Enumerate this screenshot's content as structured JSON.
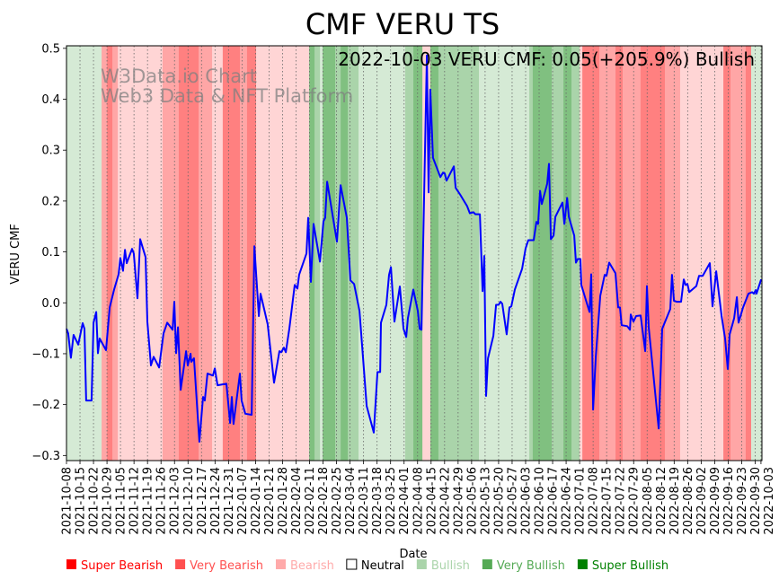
{
  "chart_data": {
    "type": "line",
    "title": "CMF VERU TS",
    "annotation": "2022-10-03 VERU CMF: 0.05(+205.9%) Bullish",
    "watermark": [
      "W3Data.io Chart",
      "Web3 Data & NFT Platform"
    ],
    "xlabel": "Date",
    "ylabel": "VERU CMF",
    "x_start_date": "2021-10-08",
    "x_unit": "days since 2021-10-08",
    "xlim": [
      0,
      360.5
    ],
    "ylim": [
      -0.31,
      0.505
    ],
    "grid": "vertical dotted at x ticks",
    "yticks": [
      -0.3,
      -0.2,
      -0.1,
      0.0,
      0.1,
      0.2,
      0.3,
      0.4,
      0.5
    ],
    "ytick_labels": [
      "−0.3",
      "−0.2",
      "−0.1",
      "0.0",
      "0.1",
      "0.2",
      "0.3",
      "0.4",
      "0.5"
    ],
    "xtick_labels": [
      "2021-10-08",
      "2021-10-15",
      "2021-10-22",
      "2021-10-29",
      "2021-11-05",
      "2021-11-12",
      "2021-11-19",
      "2021-11-26",
      "2021-12-03",
      "2021-12-10",
      "2021-12-17",
      "2021-12-24",
      "2021-12-31",
      "2022-01-07",
      "2022-01-14",
      "2022-01-21",
      "2022-01-28",
      "2022-02-04",
      "2022-02-11",
      "2022-02-18",
      "2022-02-25",
      "2022-03-04",
      "2022-03-11",
      "2022-03-18",
      "2022-03-25",
      "2022-04-01",
      "2022-04-08",
      "2022-04-15",
      "2022-04-22",
      "2022-04-29",
      "2022-05-06",
      "2022-05-13",
      "2022-05-20",
      "2022-05-27",
      "2022-06-03",
      "2022-06-10",
      "2022-06-17",
      "2022-06-24",
      "2022-07-01",
      "2022-07-08",
      "2022-07-15",
      "2022-07-22",
      "2022-07-29",
      "2022-08-05",
      "2022-08-12",
      "2022-08-19",
      "2022-08-26",
      "2022-09-02",
      "2022-09-09",
      "2022-09-16",
      "2022-09-23",
      "2022-09-30",
      "2022-10-03"
    ],
    "series": [
      {
        "name": "VERU CMF",
        "color": "#0000ff",
        "points": [
          [
            0,
            -0.051
          ],
          [
            0.9,
            -0.06
          ],
          [
            2.3,
            -0.108
          ],
          [
            3.7,
            -0.063
          ],
          [
            6.1,
            -0.082
          ],
          [
            8.4,
            -0.04
          ],
          [
            9.3,
            -0.051
          ],
          [
            10.2,
            -0.192
          ],
          [
            13.0,
            -0.192
          ],
          [
            14.0,
            -0.039
          ],
          [
            15.4,
            -0.018
          ],
          [
            16.3,
            -0.099
          ],
          [
            17.2,
            -0.07
          ],
          [
            20.5,
            -0.093
          ],
          [
            22.4,
            -0.009
          ],
          [
            24.7,
            0.026
          ],
          [
            27.0,
            0.056
          ],
          [
            27.9,
            0.088
          ],
          [
            29.3,
            0.063
          ],
          [
            30.3,
            0.104
          ],
          [
            31.2,
            0.078
          ],
          [
            34.0,
            0.106
          ],
          [
            34.9,
            0.097
          ],
          [
            36.8,
            0.009
          ],
          [
            38.2,
            0.125
          ],
          [
            41.0,
            0.09
          ],
          [
            41.9,
            -0.037
          ],
          [
            43.8,
            -0.123
          ],
          [
            45.2,
            -0.106
          ],
          [
            48.0,
            -0.127
          ],
          [
            50.3,
            -0.06
          ],
          [
            52.2,
            -0.039
          ],
          [
            55.0,
            -0.053
          ],
          [
            55.9,
            0.002
          ],
          [
            56.8,
            -0.099
          ],
          [
            57.8,
            -0.048
          ],
          [
            59.2,
            -0.171
          ],
          [
            62.0,
            -0.095
          ],
          [
            62.9,
            -0.123
          ],
          [
            64.3,
            -0.1
          ],
          [
            64.7,
            -0.116
          ],
          [
            66.1,
            -0.109
          ],
          [
            68.9,
            -0.273
          ],
          [
            70.8,
            -0.185
          ],
          [
            71.7,
            -0.192
          ],
          [
            73.1,
            -0.139
          ],
          [
            75.9,
            -0.143
          ],
          [
            76.9,
            -0.129
          ],
          [
            78.3,
            -0.162
          ],
          [
            82.9,
            -0.159
          ],
          [
            84.8,
            -0.236
          ],
          [
            85.7,
            -0.185
          ],
          [
            86.6,
            -0.238
          ],
          [
            89.9,
            -0.139
          ],
          [
            90.8,
            -0.192
          ],
          [
            92.7,
            -0.218
          ],
          [
            96.0,
            -0.22
          ],
          [
            97.4,
            0.111
          ],
          [
            99.7,
            -0.026
          ],
          [
            100.6,
            0.018
          ],
          [
            104.3,
            -0.042
          ],
          [
            107.6,
            -0.157
          ],
          [
            110.4,
            -0.095
          ],
          [
            111.3,
            -0.097
          ],
          [
            112.7,
            -0.088
          ],
          [
            113.7,
            -0.097
          ],
          [
            115.5,
            -0.051
          ],
          [
            118.3,
            0.035
          ],
          [
            119.7,
            0.028
          ],
          [
            120.6,
            0.055
          ],
          [
            124.4,
            0.097
          ],
          [
            125.3,
            0.167
          ],
          [
            126.7,
            0.041
          ],
          [
            128.1,
            0.155
          ],
          [
            131.4,
            0.081
          ],
          [
            133.2,
            0.16
          ],
          [
            134.1,
            0.167
          ],
          [
            135.1,
            0.238
          ],
          [
            140.2,
            0.12
          ],
          [
            142.1,
            0.231
          ],
          [
            145.3,
            0.167
          ],
          [
            147.2,
            0.044
          ],
          [
            149.1,
            0.037
          ],
          [
            151.9,
            -0.016
          ],
          [
            155.6,
            -0.203
          ],
          [
            159.3,
            -0.255
          ],
          [
            161.2,
            -0.136
          ],
          [
            162.6,
            -0.136
          ],
          [
            163.0,
            -0.039
          ],
          [
            165.8,
            -0.004
          ],
          [
            167.2,
            0.055
          ],
          [
            168.2,
            0.07
          ],
          [
            170.0,
            -0.037
          ],
          [
            172.8,
            0.032
          ],
          [
            174.7,
            -0.051
          ],
          [
            176.1,
            -0.067
          ],
          [
            177.0,
            -0.03
          ],
          [
            179.8,
            0.026
          ],
          [
            182.1,
            -0.016
          ],
          [
            183.1,
            -0.051
          ],
          [
            184.0,
            -0.053
          ],
          [
            186.8,
            0.486
          ],
          [
            187.7,
            0.217
          ],
          [
            188.6,
            0.419
          ],
          [
            190.0,
            0.285
          ],
          [
            193.8,
            0.247
          ],
          [
            195.2,
            0.256
          ],
          [
            196.1,
            0.254
          ],
          [
            197.0,
            0.24
          ],
          [
            200.8,
            0.268
          ],
          [
            201.7,
            0.226
          ],
          [
            204.0,
            0.213
          ],
          [
            207.7,
            0.19
          ],
          [
            209.1,
            0.176
          ],
          [
            211.0,
            0.178
          ],
          [
            211.9,
            0.174
          ],
          [
            214.3,
            0.174
          ],
          [
            215.7,
            0.023
          ],
          [
            216.6,
            0.092
          ],
          [
            217.5,
            -0.183
          ],
          [
            218.5,
            -0.109
          ],
          [
            221.3,
            -0.065
          ],
          [
            222.7,
            -0.004
          ],
          [
            224.0,
            -0.004
          ],
          [
            225.0,
            0.002
          ],
          [
            225.9,
            -0.002
          ],
          [
            228.2,
            -0.062
          ],
          [
            229.6,
            -0.009
          ],
          [
            230.6,
            -0.007
          ],
          [
            232.4,
            0.026
          ],
          [
            236.2,
            0.067
          ],
          [
            238.0,
            0.107
          ],
          [
            239.4,
            0.123
          ],
          [
            242.2,
            0.123
          ],
          [
            243.6,
            0.159
          ],
          [
            244.5,
            0.155
          ],
          [
            245.5,
            0.22
          ],
          [
            246.4,
            0.194
          ],
          [
            249.2,
            0.234
          ],
          [
            250.1,
            0.273
          ],
          [
            251.1,
            0.125
          ],
          [
            252.5,
            0.132
          ],
          [
            253.4,
            0.169
          ],
          [
            257.1,
            0.197
          ],
          [
            258.1,
            0.155
          ],
          [
            259.5,
            0.206
          ],
          [
            260.4,
            0.169
          ],
          [
            263.2,
            0.132
          ],
          [
            264.1,
            0.079
          ],
          [
            265.0,
            0.086
          ],
          [
            266.4,
            0.086
          ],
          [
            266.9,
            0.035
          ],
          [
            271.1,
            -0.018
          ],
          [
            272.0,
            0.056
          ],
          [
            273.0,
            -0.21
          ],
          [
            274.4,
            -0.106
          ],
          [
            276.7,
            0.014
          ],
          [
            279.0,
            0.055
          ],
          [
            279.9,
            0.053
          ],
          [
            281.3,
            0.079
          ],
          [
            284.6,
            0.058
          ],
          [
            286.0,
            -0.009
          ],
          [
            286.9,
            -0.009
          ],
          [
            287.8,
            -0.044
          ],
          [
            290.7,
            -0.046
          ],
          [
            292.1,
            -0.053
          ],
          [
            292.5,
            -0.023
          ],
          [
            293.9,
            -0.037
          ],
          [
            295.3,
            -0.026
          ],
          [
            297.6,
            -0.025
          ],
          [
            300.0,
            -0.095
          ],
          [
            300.9,
            0.033
          ],
          [
            301.8,
            -0.048
          ],
          [
            307.0,
            -0.247
          ],
          [
            308.8,
            -0.051
          ],
          [
            313.0,
            -0.012
          ],
          [
            313.9,
            0.055
          ],
          [
            314.9,
            0.004
          ],
          [
            316.3,
            0.002
          ],
          [
            318.6,
            0.002
          ],
          [
            320.0,
            0.046
          ],
          [
            320.9,
            0.035
          ],
          [
            321.9,
            0.037
          ],
          [
            322.8,
            0.021
          ],
          [
            326.5,
            0.033
          ],
          [
            327.9,
            0.053
          ],
          [
            329.8,
            0.053
          ],
          [
            333.5,
            0.078
          ],
          [
            334.9,
            -0.007
          ],
          [
            336.8,
            0.062
          ],
          [
            339.6,
            -0.026
          ],
          [
            341.4,
            -0.07
          ],
          [
            342.8,
            -0.13
          ],
          [
            343.8,
            -0.062
          ],
          [
            346.1,
            -0.03
          ],
          [
            347.5,
            0.011
          ],
          [
            348.4,
            -0.039
          ],
          [
            350.7,
            -0.009
          ],
          [
            353.5,
            0.018
          ],
          [
            355.4,
            0.021
          ],
          [
            356.3,
            0.018
          ],
          [
            357.3,
            0.025
          ],
          [
            357.7,
            0.018
          ],
          [
            360.1,
            0.046
          ]
        ]
      }
    ],
    "regime_bands": [
      [
        0,
        18.2,
        "bull"
      ],
      [
        18.2,
        21.0,
        "vbear"
      ],
      [
        21.0,
        23.8,
        "sbear"
      ],
      [
        23.8,
        26.6,
        "vbear"
      ],
      [
        26.6,
        49.8,
        "bear"
      ],
      [
        49.8,
        58.2,
        "vbear"
      ],
      [
        58.2,
        68.5,
        "sbear"
      ],
      [
        68.5,
        75.5,
        "vbear"
      ],
      [
        75.5,
        81.0,
        "bear"
      ],
      [
        81.0,
        89.9,
        "sbear"
      ],
      [
        89.9,
        93.6,
        "vbear"
      ],
      [
        93.6,
        98.3,
        "sbear"
      ],
      [
        98.3,
        125.8,
        "bear"
      ],
      [
        125.8,
        128.6,
        "sbull"
      ],
      [
        128.6,
        131.4,
        "vbull"
      ],
      [
        131.4,
        132.8,
        "bull"
      ],
      [
        132.8,
        139.3,
        "sbull"
      ],
      [
        139.3,
        142.1,
        "vbull"
      ],
      [
        142.1,
        145.8,
        "sbull"
      ],
      [
        145.8,
        151.4,
        "vbull"
      ],
      [
        151.4,
        175.6,
        "bull"
      ],
      [
        175.6,
        179.8,
        "vbull"
      ],
      [
        179.8,
        184.5,
        "sbull"
      ],
      [
        184.5,
        188.6,
        "bear"
      ],
      [
        188.6,
        192.8,
        "sbull"
      ],
      [
        192.8,
        213.8,
        "vbull"
      ],
      [
        213.8,
        239.9,
        "bull"
      ],
      [
        239.9,
        241.7,
        "vbull"
      ],
      [
        241.7,
        251.5,
        "sbull"
      ],
      [
        251.5,
        257.6,
        "vbull"
      ],
      [
        257.6,
        261.8,
        "sbull"
      ],
      [
        261.8,
        266.0,
        "vbull"
      ],
      [
        266.0,
        267.4,
        "bear"
      ],
      [
        267.4,
        276.2,
        "sbear"
      ],
      [
        276.2,
        284.6,
        "vbear"
      ],
      [
        284.6,
        288.3,
        "sbear"
      ],
      [
        288.3,
        297.6,
        "vbear"
      ],
      [
        297.6,
        310.2,
        "sbear"
      ],
      [
        310.2,
        318.1,
        "vbear"
      ],
      [
        318.1,
        340.5,
        "bear"
      ],
      [
        340.5,
        344.2,
        "sbear"
      ],
      [
        344.2,
        352.1,
        "vbear"
      ],
      [
        352.1,
        354.9,
        "sbear"
      ],
      [
        354.9,
        360.5,
        "bull"
      ]
    ],
    "band_colors": {
      "sbear": "#ff8080",
      "vbear": "#ffa6a6",
      "bear": "#ffd5d5",
      "bull": "#d5ead5",
      "vbull": "#aad4aa",
      "sbull": "#80c080"
    },
    "legend": [
      {
        "label": "Super Bearish",
        "color": "#ff0000",
        "text_color": "#ff0000"
      },
      {
        "label": "Very Bearish",
        "color": "#ff5050",
        "text_color": "#ff5050"
      },
      {
        "label": "Bearish",
        "color": "#ffaaaa",
        "text_color": "#ffaaaa"
      },
      {
        "label": "Neutral",
        "color": "#ffffff",
        "text_color": "#000000"
      },
      {
        "label": "Bullish",
        "color": "#aad4aa",
        "text_color": "#aad4aa"
      },
      {
        "label": "Very Bullish",
        "color": "#55aa55",
        "text_color": "#55aa55"
      },
      {
        "label": "Super Bullish",
        "color": "#008000",
        "text_color": "#008000"
      }
    ],
    "legend_placement": "bottom"
  }
}
